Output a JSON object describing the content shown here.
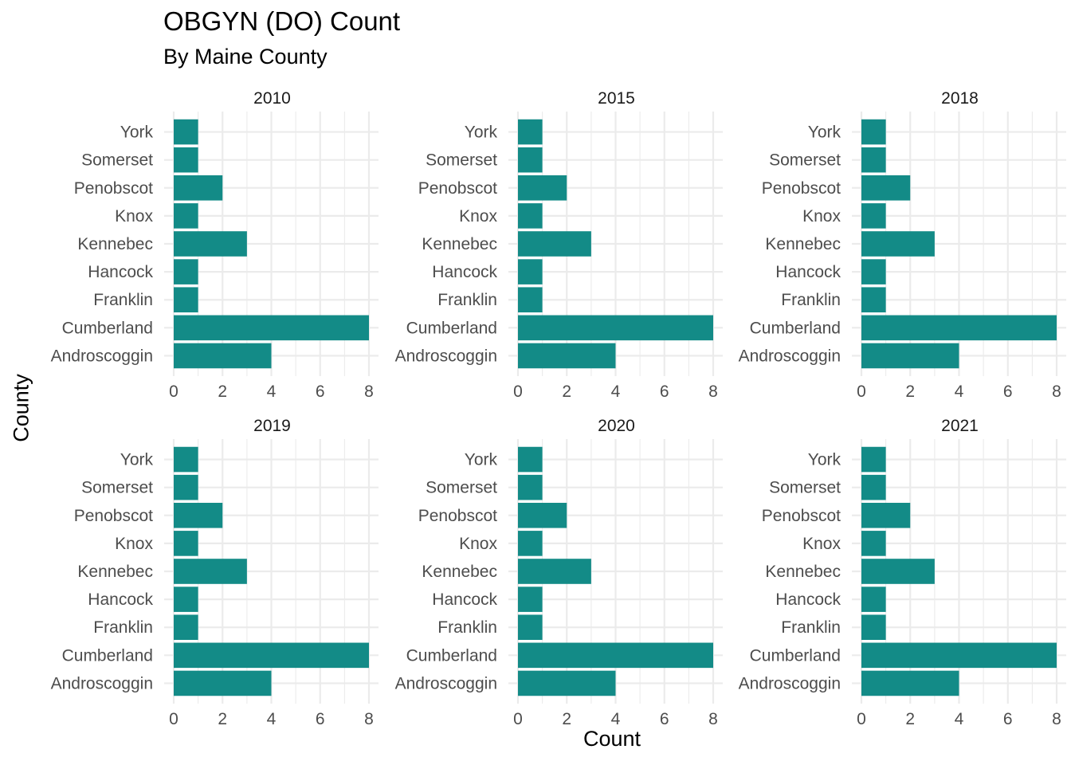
{
  "chart_data": {
    "type": "bar",
    "orientation": "horizontal",
    "title": "OBGYN (DO) Count",
    "subtitle": "By Maine County",
    "xlabel": "Count",
    "ylabel": "County",
    "xlim": [
      0,
      8
    ],
    "x_ticks": [
      0,
      2,
      4,
      6,
      8
    ],
    "grid": true,
    "bar_color": "#138B87",
    "categories": [
      "Androscoggin",
      "Cumberland",
      "Franklin",
      "Hancock",
      "Kennebec",
      "Knox",
      "Penobscot",
      "Somerset",
      "York"
    ],
    "facets": [
      {
        "name": "2010",
        "values": [
          4,
          8,
          1,
          1,
          3,
          1,
          2,
          1,
          1
        ]
      },
      {
        "name": "2015",
        "values": [
          4,
          8,
          1,
          1,
          3,
          1,
          2,
          1,
          1
        ]
      },
      {
        "name": "2018",
        "values": [
          4,
          8,
          1,
          1,
          3,
          1,
          2,
          1,
          1
        ]
      },
      {
        "name": "2019",
        "values": [
          4,
          8,
          1,
          1,
          3,
          1,
          2,
          1,
          1
        ]
      },
      {
        "name": "2020",
        "values": [
          4,
          8,
          1,
          1,
          3,
          1,
          2,
          1,
          1
        ]
      },
      {
        "name": "2021",
        "values": [
          4,
          8,
          1,
          1,
          3,
          1,
          2,
          1,
          1
        ]
      }
    ]
  }
}
